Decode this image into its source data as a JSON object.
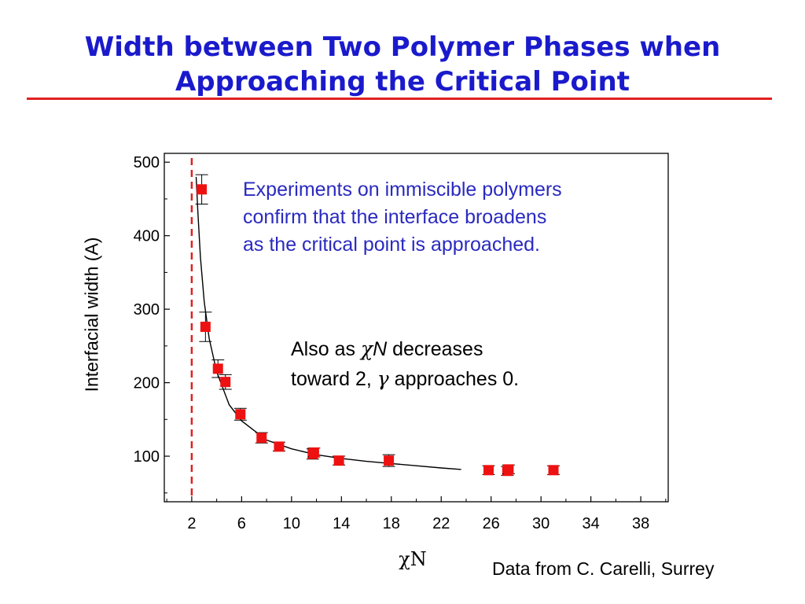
{
  "slide": {
    "title_line1": "Width between Two Polymer Phases when",
    "title_line2": "Approaching the Critical Point",
    "source": "Data from C. Carelli, Surrey"
  },
  "annotation_blue": {
    "line1": "Experiments on immiscible polymers",
    "line2": "confirm that the interface broadens",
    "line3": "as the critical point is approached."
  },
  "annotation_black": {
    "l1_a": "Also as ",
    "l1_chi": "χ",
    "l1_N": "N",
    "l1_b": " decreases",
    "l2_a": "toward 2, ",
    "l2_gamma": "γ",
    "l2_b": " approaches 0."
  },
  "colors": {
    "title": "#1a1acc",
    "rule": "#e02020",
    "marker": "#ee1111",
    "annotation_blue": "#2a2ac0"
  },
  "chart_data": {
    "type": "scatter",
    "xlabel": "χN",
    "ylabel": "Interfacial width (A)",
    "xlim": [
      -0.2,
      40.2
    ],
    "ylim": [
      38,
      512
    ],
    "xticks": [
      2,
      6,
      10,
      14,
      18,
      22,
      26,
      30,
      34,
      38
    ],
    "yticks": [
      100,
      200,
      300,
      400,
      500
    ],
    "grid": false,
    "points": [
      {
        "x": 2.8,
        "y": 463,
        "err": 20
      },
      {
        "x": 3.1,
        "y": 276,
        "err": 20
      },
      {
        "x": 4.1,
        "y": 219,
        "err": 12
      },
      {
        "x": 4.7,
        "y": 201,
        "err": 10
      },
      {
        "x": 5.9,
        "y": 157,
        "err": 8
      },
      {
        "x": 7.6,
        "y": 125,
        "err": 7
      },
      {
        "x": 9.0,
        "y": 113,
        "err": 6
      },
      {
        "x": 11.7,
        "y": 103,
        "err": 7
      },
      {
        "x": 11.8,
        "y": 105,
        "err": 6
      },
      {
        "x": 13.8,
        "y": 94,
        "err": 6
      },
      {
        "x": 17.8,
        "y": 94,
        "err": 8
      },
      {
        "x": 25.8,
        "y": 81,
        "err": 6
      },
      {
        "x": 27.3,
        "y": 80,
        "err": 6
      },
      {
        "x": 27.4,
        "y": 82,
        "err": 6
      },
      {
        "x": 31.0,
        "y": 81,
        "err": 6
      }
    ],
    "fit_curve": {
      "x": [
        2.35,
        2.5,
        2.7,
        3.0,
        3.4,
        4.0,
        5.0,
        6.0,
        8.0,
        10.0,
        12.0,
        14.0,
        16.0,
        18.0,
        20.0,
        22.0,
        23.6
      ],
      "y": [
        480,
        430,
        370,
        310,
        260,
        215,
        170,
        148,
        122,
        110,
        102,
        97,
        93,
        90,
        87,
        84,
        82
      ]
    },
    "critical_line_x": 2
  }
}
